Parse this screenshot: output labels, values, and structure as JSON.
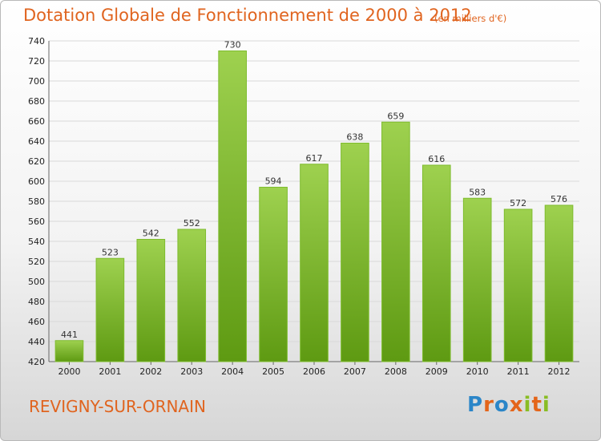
{
  "header": {
    "title": "Dotation Globale de Fonctionnement de 2000 à 2012",
    "subtitle": "(en milliers d'€)"
  },
  "footer": {
    "commune": "REVIGNY-SUR-ORNAIN",
    "logo_text": "Proxiti",
    "logo_colors": [
      "#2b86c8",
      "#e4651a",
      "#2b86c8",
      "#e4651a",
      "#89bd24",
      "#e4651a",
      "#89bd24"
    ]
  },
  "colors": {
    "accent": "#e0641f",
    "bar_light": "#9ed14f",
    "bar_dark": "#5e9a12"
  },
  "chart_data": {
    "type": "bar",
    "title": "Dotation Globale de Fonctionnement de 2000 à 2012",
    "subtitle": "(en milliers d'€)",
    "xlabel": "",
    "ylabel": "",
    "categories": [
      "2000",
      "2001",
      "2002",
      "2003",
      "2004",
      "2005",
      "2006",
      "2007",
      "2008",
      "2009",
      "2010",
      "2011",
      "2012"
    ],
    "values": [
      441,
      523,
      542,
      552,
      730,
      594,
      617,
      638,
      659,
      616,
      583,
      572,
      576
    ],
    "ylim": [
      420,
      740
    ],
    "ytick_step": 20,
    "grid": true,
    "legend": "none"
  }
}
